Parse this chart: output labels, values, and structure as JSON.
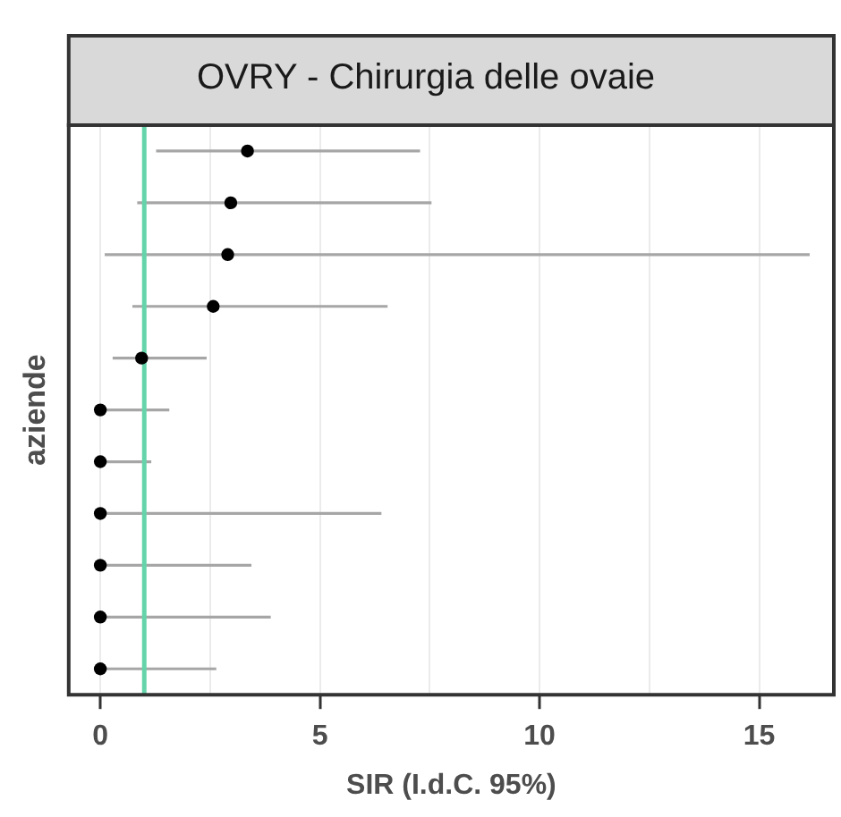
{
  "chart_data": {
    "type": "scatter",
    "orientation": "horizontal",
    "title": "OVRY - Chirurgia delle ovaie",
    "xlabel": "SIR (I.d.C. 95%)",
    "ylabel": "aziende",
    "categories": [
      null,
      null,
      null,
      null,
      null,
      null,
      null,
      null,
      null,
      null,
      null
    ],
    "values": [
      3.35,
      2.97,
      2.9,
      2.57,
      0.94,
      0,
      0,
      0,
      0,
      0,
      0
    ],
    "errors": [
      [
        1.27,
        7.28
      ],
      [
        0.84,
        7.54
      ],
      [
        0.1,
        16.15
      ],
      [
        0.73,
        6.54
      ],
      [
        0.28,
        2.42
      ],
      [
        0,
        1.57
      ],
      [
        0,
        1.16
      ],
      [
        0,
        6.4
      ],
      [
        0,
        3.44
      ],
      [
        0,
        3.88
      ],
      [
        0,
        2.64
      ]
    ],
    "color": "#000000",
    "marker": "circle",
    "xlim": [
      -0.72,
      16.7
    ],
    "xticks": [
      0,
      {
        "value": 2.5,
        "label": null
      },
      5,
      {
        "value": 7.5,
        "label": null
      },
      10,
      {
        "value": 12.5,
        "label": null
      },
      15
    ],
    "ref_lines": [
      {
        "axis": "x",
        "value": 1,
        "color": "#66d4aa"
      }
    ],
    "grid": "x",
    "legend": false
  }
}
